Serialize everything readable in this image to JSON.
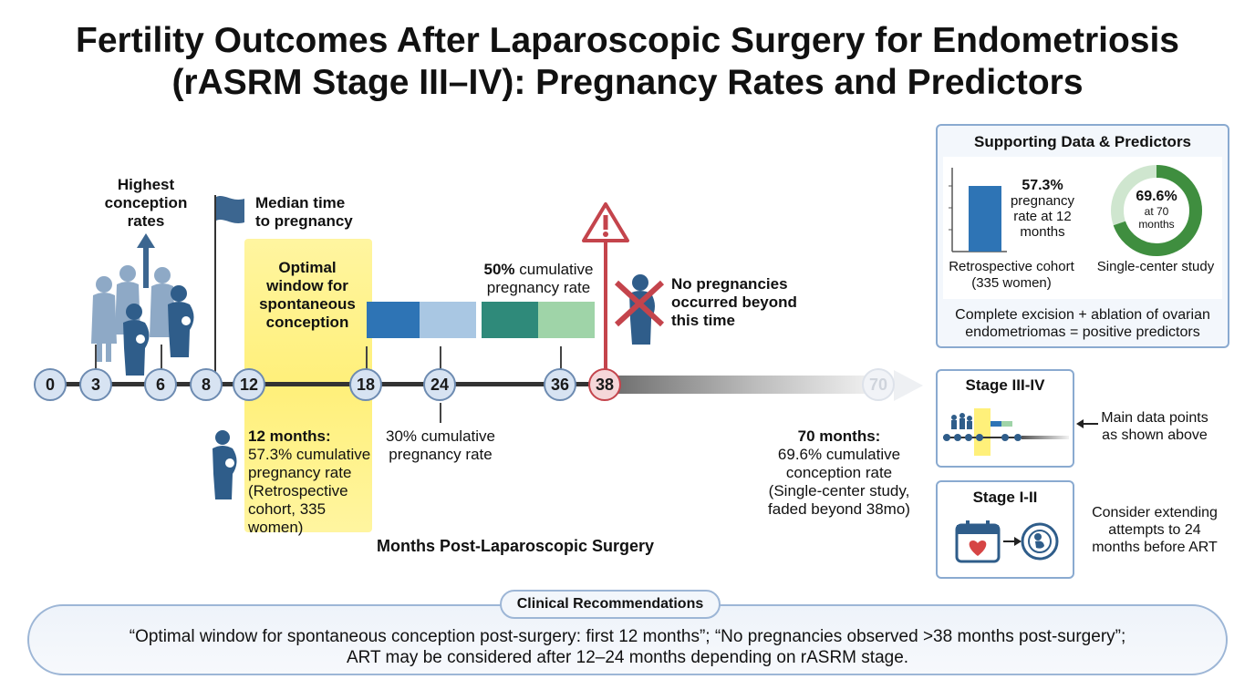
{
  "title": {
    "line1": "Fertility Outcomes After Laparoscopic Surgery for Endometriosis",
    "line2": "(rASRM Stage III–IV): Pregnancy Rates and Predictors"
  },
  "timeline": {
    "nodes": [
      "0",
      "3",
      "6",
      "8",
      "12",
      "18",
      "24",
      "36",
      "38",
      "70"
    ],
    "axis_label": "Months Post-Laparoscopic Surgery",
    "highest_conception": [
      "Highest",
      "conception",
      "rates"
    ],
    "median_time": [
      "Median time",
      "to pregnancy"
    ],
    "optimal_window": [
      "Optimal",
      "window for",
      "spontaneous",
      "conception"
    ],
    "rate_50": {
      "value": "50%",
      "rest": "cumulative",
      "line2": "pregnancy rate"
    },
    "no_pregnancies": [
      "No pregnancies",
      "occurred beyond",
      "this time"
    ],
    "annot_12": {
      "heading": "12 months:",
      "lines": [
        "57.3% cumulative",
        "pregnancy rate",
        "(Retrospective",
        "cohort, 335",
        "women)"
      ]
    },
    "annot_24": [
      "30% cumulative",
      "pregnancy rate"
    ],
    "annot_70": {
      "heading": "70 months:",
      "lines": [
        "69.6% cumulative",
        "conception rate",
        "(Single-center study,",
        "faded beyond 38mo)"
      ]
    },
    "bar_colors": [
      "#2e74b5",
      "#a9c7e3",
      "#2f8a7a",
      "#9fd4a8"
    ]
  },
  "supporting": {
    "title": "Supporting Data & Predictors",
    "bar_value": "57.3%",
    "bar_text": [
      "pregnancy",
      "rate at 12",
      "months"
    ],
    "bar_caption": [
      "Retrospective cohort",
      "(335 women)"
    ],
    "donut_value": "69.6%",
    "donut_text": [
      "at 70",
      "months"
    ],
    "donut_fraction": 0.696,
    "donut_caption": "Single-center study",
    "predictor_text": [
      "Complete excision + ablation of ovarian",
      "endometriomas = positive predictors"
    ]
  },
  "stage34": {
    "title": "Stage III-IV",
    "note": [
      "Main data points",
      "as shown above"
    ]
  },
  "stage12": {
    "title": "Stage I-II",
    "note": [
      "Consider extending",
      "attempts to 24",
      "months before ART"
    ]
  },
  "recommendations": {
    "tag": "Clinical Recommendations",
    "line1": "“Optimal window for spontaneous conception post-surgery: first 12 months”; “No pregnancies observed >38 months post-surgery”;",
    "line2": "ART may be considered after 12–24 months depending on rASRM stage."
  }
}
